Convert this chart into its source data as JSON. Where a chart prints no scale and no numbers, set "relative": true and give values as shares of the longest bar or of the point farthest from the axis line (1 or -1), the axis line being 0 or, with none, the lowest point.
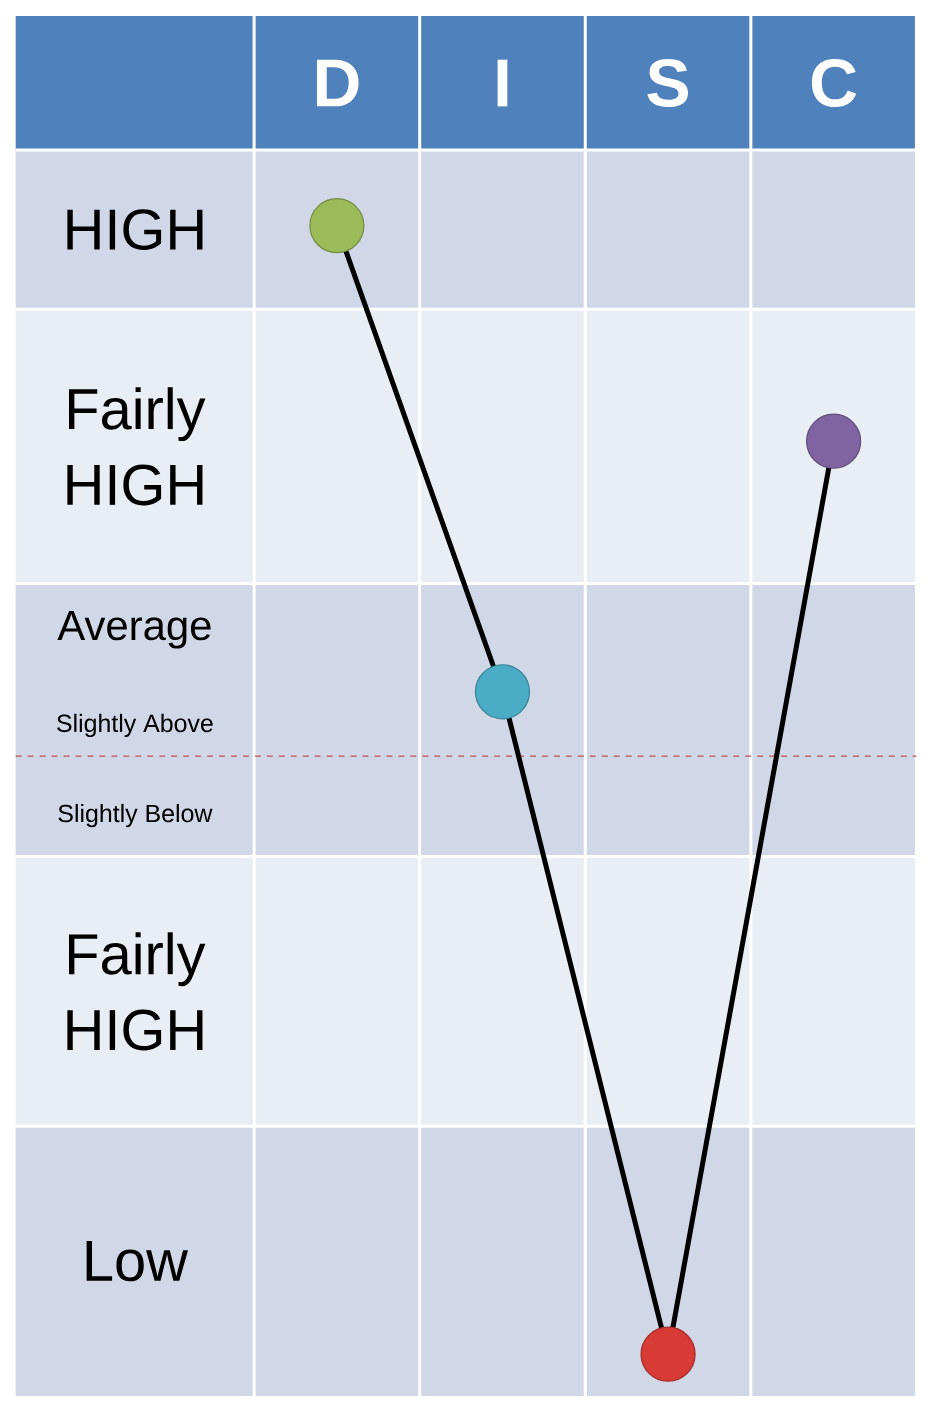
{
  "chart_data": {
    "type": "line",
    "relative": true,
    "marker": "circle",
    "line_style": "solid",
    "categories": [
      "D",
      "I",
      "S",
      "C"
    ],
    "series": [
      {
        "color": "#000000",
        "colors": [
          "#9bbb59",
          "#4bacc6",
          "#d83b35",
          "#8064a2"
        ],
        "values": [
          1,
          0.587,
          0,
          0.809
        ]
      }
    ],
    "bands": [
      {
        "axis": "y",
        "from": 0.926,
        "to": 1.067,
        "label": "HIGH",
        "color": "#d0d8e8"
      },
      {
        "axis": "y",
        "from": 0.683,
        "to": 0.926,
        "label": "Fairly HIGH",
        "color": "#e9edf4"
      },
      {
        "axis": "y",
        "from": 0.441,
        "to": 0.683,
        "color": "#d0d8e8"
      },
      {
        "axis": "y",
        "from": 0.202,
        "to": 0.441,
        "label": "Fairly HIGH",
        "color": "#e9edf4"
      },
      {
        "axis": "y",
        "from": -0.037,
        "to": 0.202,
        "label": "Low",
        "color": "#d0d8e8"
      }
    ],
    "ref_lines": [
      {
        "axis": "y",
        "value": 0.53,
        "color": "#c0504d",
        "line_style": "dashed"
      }
    ],
    "annotations": [
      "Average",
      "Slightly Above",
      "Slightly Below"
    ]
  }
}
